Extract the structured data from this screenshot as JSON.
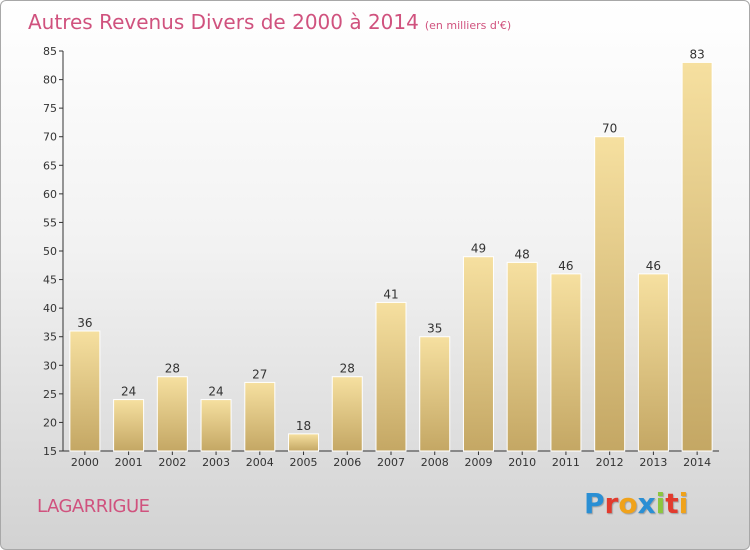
{
  "header": {
    "title": "Autres Revenus Divers de 2000 à 2014",
    "subtitle": "(en milliers d'€)"
  },
  "footer": {
    "place": "LAGARRIGUE",
    "logo_letters": [
      {
        "char": "P",
        "color": "#2a8fd4"
      },
      {
        "char": "r",
        "color": "#e23b2e"
      },
      {
        "char": "o",
        "color": "#f0a21a"
      },
      {
        "char": "x",
        "color": "#2a8fd4"
      },
      {
        "char": "i",
        "color": "#8cc63f"
      },
      {
        "char": "t",
        "color": "#e23b2e"
      },
      {
        "char": "i",
        "color": "#f0a21a"
      }
    ]
  },
  "chart_data": {
    "type": "bar",
    "title": "Autres Revenus Divers de 2000 à 2014",
    "subtitle": "(en milliers d'€)",
    "categories": [
      "2000",
      "2001",
      "2002",
      "2003",
      "2004",
      "2005",
      "2006",
      "2007",
      "2008",
      "2009",
      "2010",
      "2011",
      "2012",
      "2013",
      "2014"
    ],
    "values": [
      36,
      24,
      28,
      24,
      27,
      18,
      28,
      41,
      35,
      49,
      48,
      46,
      70,
      46,
      83
    ],
    "ylim": [
      15,
      85
    ],
    "yticks": [
      15,
      20,
      25,
      30,
      35,
      40,
      45,
      50,
      55,
      60,
      65,
      70,
      75,
      80,
      85
    ],
    "grid": false,
    "data_labels": true,
    "bar_color_top": "#f6e0a0",
    "bar_color_bottom": "#c4a764"
  }
}
